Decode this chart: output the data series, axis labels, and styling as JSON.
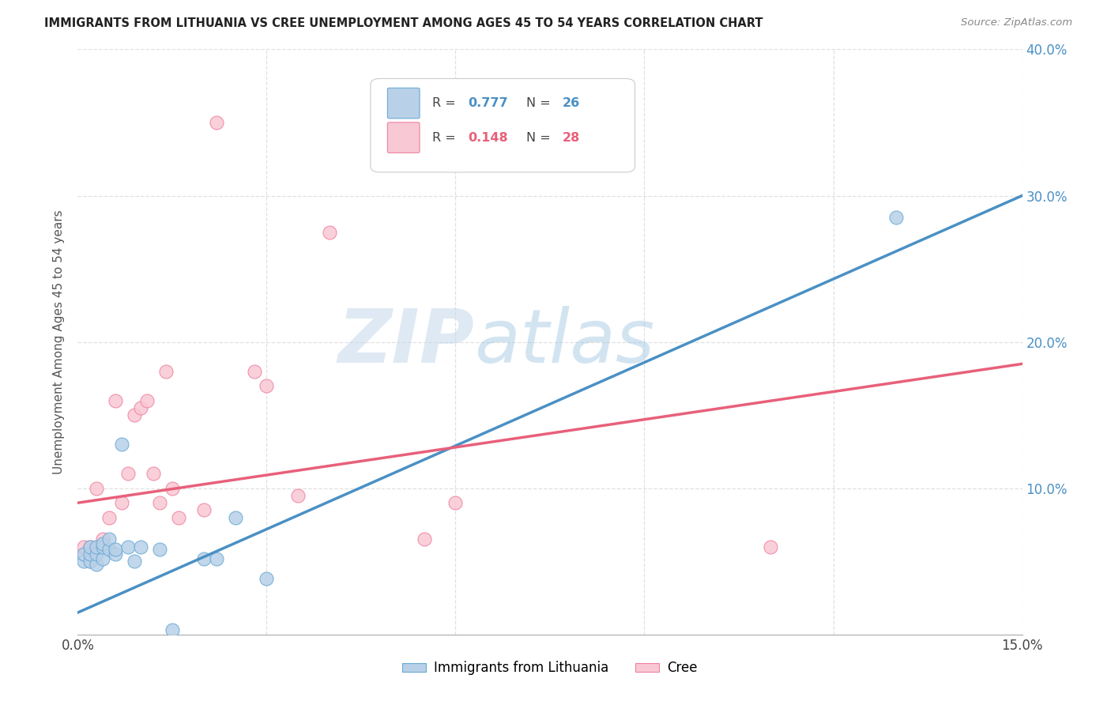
{
  "title": "IMMIGRANTS FROM LITHUANIA VS CREE UNEMPLOYMENT AMONG AGES 45 TO 54 YEARS CORRELATION CHART",
  "source": "Source: ZipAtlas.com",
  "ylabel": "Unemployment Among Ages 45 to 54 years",
  "xlim": [
    0,
    0.15
  ],
  "ylim": [
    0,
    0.4
  ],
  "blue_R": "0.777",
  "blue_N": "26",
  "pink_R": "0.148",
  "pink_N": "28",
  "blue_scatter_x": [
    0.001,
    0.001,
    0.002,
    0.002,
    0.002,
    0.003,
    0.003,
    0.003,
    0.004,
    0.004,
    0.004,
    0.005,
    0.005,
    0.006,
    0.006,
    0.007,
    0.008,
    0.009,
    0.01,
    0.013,
    0.015,
    0.02,
    0.022,
    0.025,
    0.03,
    0.13
  ],
  "blue_scatter_y": [
    0.05,
    0.055,
    0.05,
    0.055,
    0.06,
    0.048,
    0.055,
    0.06,
    0.052,
    0.06,
    0.062,
    0.058,
    0.065,
    0.055,
    0.058,
    0.13,
    0.06,
    0.05,
    0.06,
    0.058,
    0.003,
    0.052,
    0.052,
    0.08,
    0.038,
    0.285
  ],
  "pink_scatter_x": [
    0.001,
    0.001,
    0.002,
    0.002,
    0.003,
    0.003,
    0.004,
    0.005,
    0.006,
    0.007,
    0.008,
    0.009,
    0.01,
    0.011,
    0.012,
    0.013,
    0.014,
    0.015,
    0.016,
    0.02,
    0.022,
    0.028,
    0.03,
    0.035,
    0.04,
    0.055,
    0.06,
    0.11
  ],
  "pink_scatter_y": [
    0.055,
    0.06,
    0.05,
    0.06,
    0.06,
    0.1,
    0.065,
    0.08,
    0.16,
    0.09,
    0.11,
    0.15,
    0.155,
    0.16,
    0.11,
    0.09,
    0.18,
    0.1,
    0.08,
    0.085,
    0.35,
    0.18,
    0.17,
    0.095,
    0.275,
    0.065,
    0.09,
    0.06
  ],
  "blue_line_x": [
    0.0,
    0.15
  ],
  "blue_line_y": [
    0.015,
    0.3
  ],
  "pink_line_x": [
    0.0,
    0.15
  ],
  "pink_line_y": [
    0.09,
    0.185
  ],
  "blue_color": "#b8d0e8",
  "blue_edge_color": "#6aaad4",
  "blue_line_color": "#4a90c4",
  "pink_color": "#f8c8d4",
  "pink_edge_color": "#f080a0",
  "pink_line_color": "#e8607a",
  "blue_label": "Immigrants from Lithuania",
  "pink_label": "Cree",
  "watermark_zip": "ZIP",
  "watermark_atlas": "atlas",
  "background_color": "#ffffff",
  "grid_color": "#e0e0e0"
}
